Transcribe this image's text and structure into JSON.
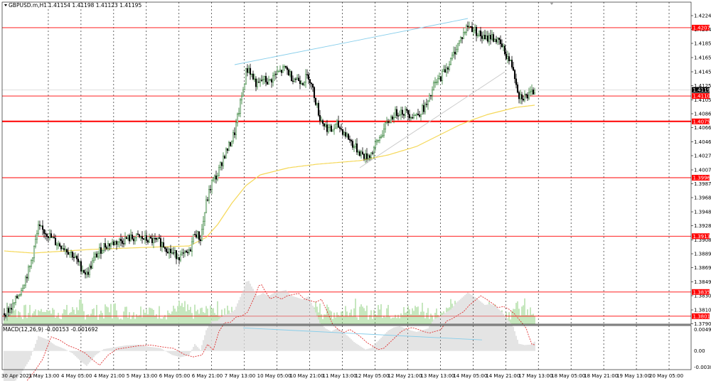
{
  "header": {
    "symbol_label": "GBPUSD.m,H1",
    "ohlc_label": "1.41154 1.41198 1.41123 1.41195"
  },
  "macd": {
    "label": "MACD(12,26,9) -0.00153 -0.001692",
    "axis_labels": [
      "0.004991",
      "0.00",
      "-0.003891"
    ]
  },
  "chart_data": {
    "type": "candlestick",
    "symbol": "GBPUSD.m",
    "timeframe": "H1",
    "last_ohlc": {
      "open": 1.41154,
      "high": 1.41198,
      "low": 1.41123,
      "close": 1.41195
    },
    "ylim": [
      1.379,
      1.424
    ],
    "price_ticks": [
      "1.42240",
      "1.42045",
      "1.41850",
      "1.41650",
      "1.41450",
      "1.41255",
      "1.41055",
      "1.40860",
      "1.40665",
      "1.40465",
      "1.40270",
      "1.40070",
      "1.39875",
      "1.39680",
      "1.39480",
      "1.39285",
      "1.39085",
      "1.38890",
      "1.38695",
      "1.38495",
      "1.38300",
      "1.38100",
      "1.37905"
    ],
    "x_tick_labels": [
      "30 Apr 2021",
      "3 May 13:00",
      "4 May 05:00",
      "4 May 21:00",
      "5 May 13:00",
      "6 May 05:00",
      "6 May 21:00",
      "7 May 13:00",
      "10 May 05:00",
      "10 May 21:00",
      "11 May 13:00",
      "12 May 05:00",
      "12 May 21:00",
      "13 May 13:00",
      "14 May 05:00",
      "14 May 21:00",
      "17 May 13:00",
      "18 May 05:00",
      "18 May 21:00",
      "19 May 13:00",
      "20 May 05:00"
    ],
    "current_price": "1.41195",
    "horizontal_levels": [
      {
        "value": 1.42071,
        "label": "1.42071",
        "weight": "thin"
      },
      {
        "value": 1.41109,
        "label": "1.41109",
        "weight": "thin"
      },
      {
        "value": 1.40752,
        "label": "1.40752",
        "weight": "thick"
      },
      {
        "value": 1.3996,
        "label": "1.39960",
        "weight": "thin"
      },
      {
        "value": 1.39137,
        "label": "1.39137",
        "weight": "thin"
      },
      {
        "value": 1.38352,
        "label": "1.38352",
        "weight": "thin"
      },
      {
        "value": 1.38012,
        "label": "1.38012",
        "weight": "thin"
      }
    ],
    "close_path": [
      [
        0,
        1.3805
      ],
      [
        6,
        1.3815
      ],
      [
        12,
        1.384
      ],
      [
        18,
        1.387
      ],
      [
        24,
        1.3925
      ],
      [
        30,
        1.3918
      ],
      [
        36,
        1.3905
      ],
      [
        42,
        1.3898
      ],
      [
        48,
        1.3888
      ],
      [
        54,
        1.387
      ],
      [
        58,
        1.386
      ],
      [
        64,
        1.3885
      ],
      [
        70,
        1.39
      ],
      [
        78,
        1.3905
      ],
      [
        86,
        1.391
      ],
      [
        94,
        1.3912
      ],
      [
        102,
        1.3908
      ],
      [
        110,
        1.3905
      ],
      [
        118,
        1.389
      ],
      [
        124,
        1.3885
      ],
      [
        130,
        1.389
      ],
      [
        134,
        1.392
      ],
      [
        138,
        1.391
      ],
      [
        142,
        1.396
      ],
      [
        146,
        1.399
      ],
      [
        150,
        1.4
      ],
      [
        154,
        1.4025
      ],
      [
        158,
        1.404
      ],
      [
        162,
        1.406
      ],
      [
        165,
        1.409
      ],
      [
        168,
        1.412
      ],
      [
        170,
        1.4145
      ],
      [
        172,
        1.415
      ],
      [
        174,
        1.414
      ],
      [
        178,
        1.4125
      ],
      [
        182,
        1.4135
      ],
      [
        186,
        1.413
      ],
      [
        190,
        1.414
      ],
      [
        194,
        1.4145
      ],
      [
        198,
        1.415
      ],
      [
        202,
        1.4138
      ],
      [
        206,
        1.4135
      ],
      [
        210,
        1.4132
      ],
      [
        214,
        1.414
      ],
      [
        218,
        1.4112
      ],
      [
        222,
        1.408
      ],
      [
        226,
        1.4068
      ],
      [
        230,
        1.4062
      ],
      [
        234,
        1.407
      ],
      [
        238,
        1.4062
      ],
      [
        242,
        1.4052
      ],
      [
        246,
        1.404
      ],
      [
        250,
        1.4032
      ],
      [
        254,
        1.4025
      ],
      [
        258,
        1.403
      ],
      [
        262,
        1.4045
      ],
      [
        266,
        1.406
      ],
      [
        270,
        1.4075
      ],
      [
        274,
        1.4085
      ],
      [
        278,
        1.409
      ],
      [
        282,
        1.4088
      ],
      [
        286,
        1.4085
      ],
      [
        290,
        1.4084
      ],
      [
        294,
        1.4092
      ],
      [
        298,
        1.41
      ],
      [
        302,
        1.4125
      ],
      [
        306,
        1.4135
      ],
      [
        310,
        1.4148
      ],
      [
        314,
        1.416
      ],
      [
        318,
        1.418
      ],
      [
        322,
        1.4195
      ],
      [
        326,
        1.421
      ],
      [
        330,
        1.4205
      ],
      [
        334,
        1.4198
      ],
      [
        338,
        1.419
      ],
      [
        342,
        1.4195
      ],
      [
        346,
        1.419
      ],
      [
        350,
        1.418
      ],
      [
        354,
        1.4165
      ],
      [
        358,
        1.415
      ],
      [
        360,
        1.413
      ],
      [
        362,
        1.4112
      ],
      [
        366,
        1.411
      ],
      [
        370,
        1.4112
      ],
      [
        373,
        1.41195
      ]
    ],
    "moving_average": [
      [
        0,
        1.3893
      ],
      [
        20,
        1.389
      ],
      [
        60,
        1.3895
      ],
      [
        100,
        1.3898
      ],
      [
        130,
        1.39
      ],
      [
        142,
        1.3912
      ],
      [
        150,
        1.393
      ],
      [
        160,
        1.396
      ],
      [
        170,
        1.3985
      ],
      [
        180,
        1.4
      ],
      [
        200,
        1.401
      ],
      [
        220,
        1.4015
      ],
      [
        250,
        1.402
      ],
      [
        270,
        1.4028
      ],
      [
        290,
        1.404
      ],
      [
        300,
        1.405
      ],
      [
        310,
        1.406
      ],
      [
        320,
        1.407
      ],
      [
        330,
        1.4078
      ],
      [
        340,
        1.4085
      ],
      [
        350,
        1.409
      ],
      [
        360,
        1.4095
      ],
      [
        373,
        1.4098
      ]
    ],
    "trendlines": [
      {
        "from": [
          162,
          1.4155
        ],
        "to": [
          326,
          1.422
        ],
        "color": "#87ceeb"
      },
      {
        "from": [
          250,
          1.401
        ],
        "to": [
          352,
          1.4145
        ],
        "color": "#c8c8c8"
      }
    ],
    "macd_trendline": {
      "from": [
        168,
        0.0048
      ],
      "to": [
        336,
        0.0023
      ],
      "color": "#87ceeb"
    },
    "colors": {
      "bull": "#2e7d32",
      "bear": "#000000",
      "level_line": "#ff0000",
      "ma_line": "#f5d858",
      "volume": "#8ccf7e",
      "macd_hist": "#c8c8c8",
      "macd_signal": "#e03030",
      "price_tag": "#ff0000",
      "current_tag": "#000000"
    }
  }
}
